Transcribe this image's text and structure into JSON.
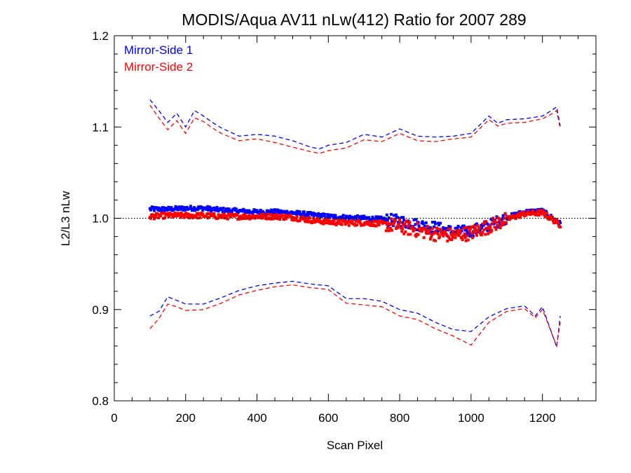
{
  "chart_data": {
    "type": "line",
    "title": "MODIS/Aqua AV11 nLw(412) Ratio for 2007 289",
    "xlabel": "Scan Pixel",
    "ylabel": "L2/L3 nLw",
    "xlim": [
      0,
      1350
    ],
    "ylim": [
      0.8,
      1.2
    ],
    "xticks": [
      0,
      200,
      400,
      600,
      800,
      1000,
      1200
    ],
    "xtick_labels": [
      "0",
      "200",
      "400",
      "600",
      "800",
      "1000",
      "1200"
    ],
    "yticks": [
      0.8,
      0.9,
      1.0,
      1.1,
      1.2
    ],
    "ytick_labels": [
      "0.8",
      "0.9",
      "1.0",
      "1.1",
      "1.2"
    ],
    "reference_line": 1.0,
    "legend": {
      "position": "top-left",
      "entries": [
        {
          "label": "Mirror-Side 1",
          "color": "#0000ff"
        },
        {
          "label": "Mirror-Side 2",
          "color": "#ff0000"
        }
      ]
    },
    "series": [
      {
        "name": "Mirror-Side 1",
        "color": "#0000ff",
        "mean": {
          "x": [
            100,
            150,
            200,
            250,
            300,
            350,
            400,
            450,
            500,
            550,
            600,
            650,
            700,
            750,
            800,
            850,
            900,
            950,
            1000,
            1050,
            1100,
            1150,
            1200,
            1250
          ],
          "y": [
            1.01,
            1.01,
            1.011,
            1.011,
            1.009,
            1.008,
            1.007,
            1.007,
            1.006,
            1.004,
            1.002,
            1.001,
            1.0,
            0.999,
            0.997,
            0.993,
            0.99,
            0.985,
            0.986,
            0.992,
            1.001,
            1.007,
            1.008,
            0.994
          ]
        },
        "upper": {
          "x": [
            100,
            125,
            150,
            175,
            200,
            225,
            250,
            275,
            300,
            350,
            400,
            450,
            500,
            550,
            575,
            600,
            650,
            700,
            750,
            800,
            850,
            900,
            950,
            1000,
            1050,
            1075,
            1100,
            1150,
            1200,
            1225,
            1240,
            1250
          ],
          "y": [
            1.13,
            1.118,
            1.105,
            1.115,
            1.1,
            1.118,
            1.112,
            1.105,
            1.099,
            1.09,
            1.092,
            1.09,
            1.085,
            1.078,
            1.076,
            1.08,
            1.083,
            1.092,
            1.089,
            1.098,
            1.09,
            1.089,
            1.09,
            1.093,
            1.112,
            1.104,
            1.108,
            1.109,
            1.112,
            1.118,
            1.122,
            1.101
          ]
        },
        "lower": {
          "x": [
            100,
            125,
            150,
            175,
            200,
            250,
            300,
            350,
            400,
            450,
            500,
            550,
            600,
            650,
            700,
            750,
            800,
            850,
            900,
            950,
            1000,
            1050,
            1100,
            1150,
            1180,
            1200,
            1240,
            1250
          ],
          "y": [
            0.893,
            0.898,
            0.914,
            0.91,
            0.906,
            0.906,
            0.913,
            0.921,
            0.926,
            0.929,
            0.931,
            0.928,
            0.926,
            0.912,
            0.912,
            0.909,
            0.9,
            0.896,
            0.886,
            0.878,
            0.876,
            0.892,
            0.901,
            0.904,
            0.893,
            0.903,
            0.859,
            0.893
          ]
        }
      },
      {
        "name": "Mirror-Side 2",
        "color": "#ff0000",
        "mean": {
          "x": [
            100,
            150,
            200,
            250,
            300,
            350,
            400,
            450,
            500,
            550,
            600,
            650,
            700,
            750,
            800,
            850,
            900,
            950,
            1000,
            1050,
            1100,
            1150,
            1200,
            1250
          ],
          "y": [
            1.002,
            1.003,
            1.003,
            1.003,
            1.002,
            1.002,
            1.002,
            1.002,
            1.001,
            0.998,
            0.996,
            0.995,
            0.995,
            0.994,
            0.991,
            0.987,
            0.983,
            0.981,
            0.984,
            0.991,
            0.999,
            1.005,
            1.006,
            0.993
          ]
        },
        "upper": {
          "x": [
            100,
            125,
            150,
            175,
            200,
            225,
            250,
            275,
            300,
            350,
            400,
            450,
            500,
            550,
            575,
            600,
            650,
            700,
            750,
            800,
            850,
            900,
            950,
            1000,
            1050,
            1075,
            1100,
            1150,
            1200,
            1225,
            1240,
            1250
          ],
          "y": [
            1.124,
            1.11,
            1.097,
            1.107,
            1.093,
            1.11,
            1.106,
            1.099,
            1.093,
            1.085,
            1.087,
            1.083,
            1.078,
            1.073,
            1.071,
            1.074,
            1.077,
            1.086,
            1.084,
            1.093,
            1.085,
            1.084,
            1.087,
            1.089,
            1.108,
            1.101,
            1.104,
            1.105,
            1.109,
            1.114,
            1.118,
            1.098
          ]
        },
        "lower": {
          "x": [
            100,
            125,
            150,
            175,
            200,
            250,
            300,
            350,
            400,
            450,
            500,
            550,
            600,
            650,
            700,
            750,
            800,
            850,
            900,
            950,
            1000,
            1050,
            1100,
            1150,
            1180,
            1200,
            1240,
            1250
          ],
          "y": [
            0.879,
            0.89,
            0.906,
            0.903,
            0.899,
            0.9,
            0.907,
            0.916,
            0.921,
            0.925,
            0.927,
            0.924,
            0.922,
            0.907,
            0.905,
            0.903,
            0.893,
            0.889,
            0.879,
            0.871,
            0.861,
            0.886,
            0.898,
            0.901,
            0.891,
            0.9,
            0.86,
            0.886
          ]
        }
      }
    ]
  }
}
